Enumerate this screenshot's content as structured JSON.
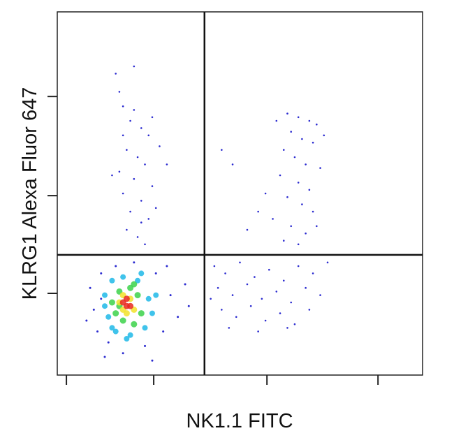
{
  "chart_data": {
    "type": "scatter",
    "xlabel": "NK1.1 FITC",
    "ylabel": "KLRG1 Alexa Fluor 647",
    "xlim": [
      0,
      100
    ],
    "ylim": [
      0,
      100
    ],
    "xticks": [
      2.5,
      26.4,
      57.4,
      87.8
    ],
    "yticks": [
      22.5,
      49.4,
      76.7
    ],
    "gates": {
      "x": 40.3,
      "y": 33.1
    },
    "series": [
      {
        "color": "#2b2bd0",
        "x": [
          16,
          17,
          21,
          18,
          20,
          23,
          25,
          19,
          22,
          24,
          17,
          21,
          26,
          18,
          23,
          20,
          25,
          19,
          22,
          24,
          28,
          15,
          27,
          21,
          26,
          30,
          18,
          23
        ],
        "y": [
          83,
          78,
          85,
          74,
          70,
          68,
          66,
          62,
          60,
          58,
          56,
          54,
          52,
          50,
          48,
          45,
          43,
          40,
          38,
          36,
          63,
          55,
          46,
          73,
          71,
          58,
          66,
          42
        ]
      },
      {
        "color": "#2b2bd0",
        "x": [
          60,
          63,
          66,
          69,
          71,
          64,
          67,
          70,
          62,
          65,
          68,
          72,
          61,
          66,
          69,
          63,
          67,
          70,
          59,
          64,
          68,
          62,
          66,
          57,
          55,
          48,
          45,
          52,
          71,
          73
        ],
        "y": [
          70,
          72,
          71,
          70,
          69,
          67,
          65,
          64,
          62,
          60,
          58,
          57,
          55,
          53,
          51,
          49,
          47,
          45,
          43,
          41,
          39,
          37,
          36,
          50,
          45,
          58,
          62,
          40,
          41,
          66
        ]
      },
      {
        "color": "#2b2bd0",
        "x": [
          43,
          46,
          50,
          54,
          58,
          62,
          66,
          70,
          74,
          44,
          48,
          52,
          56,
          60,
          64,
          68,
          72,
          45,
          49,
          53,
          57,
          61,
          65,
          69,
          47,
          55,
          63,
          42
        ],
        "y": [
          30,
          28,
          31,
          27,
          29,
          26,
          30,
          28,
          31,
          24,
          22,
          25,
          21,
          23,
          20,
          24,
          22,
          18,
          16,
          19,
          15,
          17,
          14,
          18,
          13,
          12,
          13,
          21
        ]
      },
      {
        "color": "#2b2bd0",
        "x": [
          9,
          10,
          11,
          12,
          14,
          16,
          18,
          21,
          24,
          27,
          29,
          31,
          33,
          35,
          12,
          30,
          13,
          26,
          36,
          8
        ],
        "y": [
          24,
          18,
          12,
          28,
          9,
          30,
          6,
          31,
          8,
          28,
          12,
          22,
          16,
          25,
          21,
          30,
          5,
          4,
          19,
          15
        ]
      },
      {
        "color": "#1fb8e8",
        "x": [
          13,
          14,
          15,
          16,
          18,
          20,
          22,
          24,
          25,
          26,
          13,
          23,
          19,
          27,
          15
        ],
        "y": [
          22,
          16,
          26,
          12,
          27,
          11,
          26,
          13,
          21,
          17,
          19,
          28,
          10,
          22,
          13
        ]
      },
      {
        "color": "#3cd24a",
        "x": [
          15,
          16,
          17,
          18,
          20,
          21,
          22,
          23,
          17,
          21
        ],
        "y": [
          20,
          17,
          23,
          15,
          24,
          14,
          22,
          17,
          19,
          25
        ]
      },
      {
        "color": "#f2e22a",
        "x": [
          17,
          18,
          19,
          20,
          21,
          18
        ],
        "y": [
          20,
          22,
          17,
          21,
          18,
          18
        ]
      },
      {
        "color": "#e8281e",
        "x": [
          18,
          19,
          20,
          19
        ],
        "y": [
          20,
          21,
          19,
          19
        ]
      }
    ]
  }
}
